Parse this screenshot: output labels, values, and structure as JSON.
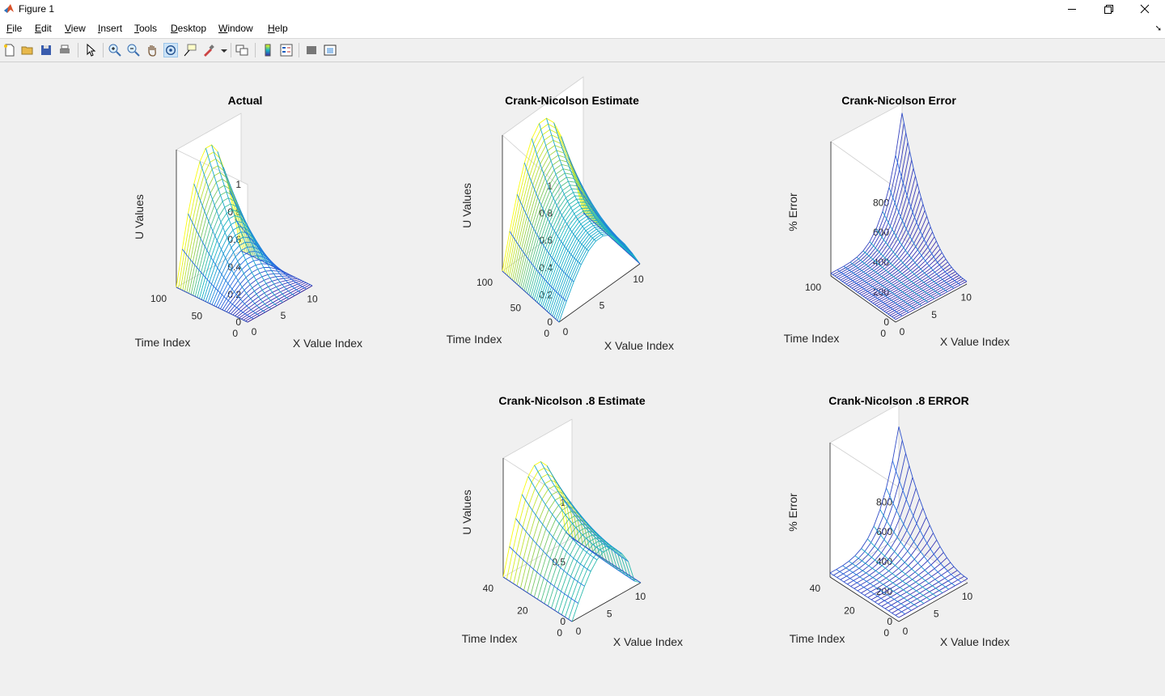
{
  "window": {
    "title": "Figure 1"
  },
  "menu": [
    {
      "label": "File",
      "accel": "F"
    },
    {
      "label": "Edit",
      "accel": "E"
    },
    {
      "label": "View",
      "accel": "V"
    },
    {
      "label": "Insert",
      "accel": "I"
    },
    {
      "label": "Tools",
      "accel": "T"
    },
    {
      "label": "Desktop",
      "accel": "D"
    },
    {
      "label": "Window",
      "accel": "W"
    },
    {
      "label": "Help",
      "accel": "H"
    }
  ],
  "toolbar": [
    "new-figure-icon",
    "open-file-icon",
    "save-icon",
    "print-icon",
    "edit-plot-icon",
    "zoom-in-icon",
    "zoom-out-icon",
    "pan-icon",
    "rotate-3d-icon",
    "data-cursor-icon",
    "brush-icon",
    "link-plot-icon",
    "colorbar-icon",
    "legend-icon",
    "hide-plot-tools-icon",
    "show-plot-tools-icon"
  ],
  "chart_data": [
    {
      "type": "surface",
      "title": "Actual",
      "xlabel": "X Value Index",
      "ylabel": "Time Index",
      "zlabel": "U Values",
      "xlim": [
        0,
        11
      ],
      "ylim": [
        0,
        100
      ],
      "zlim": [
        0,
        1
      ],
      "xticks": [
        "0",
        "5",
        "10"
      ],
      "yticks": [
        "0",
        "50",
        "100"
      ],
      "zticks": [
        "0",
        "0.2",
        "0.4",
        "0.6",
        "0.8",
        "1"
      ],
      "grid": true,
      "peak_value": 0.9,
      "colormap": "parula"
    },
    {
      "type": "surface",
      "title": "Crank-Nicolson Estimate",
      "xlabel": "X Value Index",
      "ylabel": "Time Index",
      "zlabel": "U Values",
      "xlim": [
        0,
        11
      ],
      "ylim": [
        0,
        100
      ],
      "zlim": [
        0,
        1
      ],
      "xticks": [
        "0",
        "5",
        "10"
      ],
      "yticks": [
        "0",
        "50",
        "100"
      ],
      "zticks": [
        "0",
        "0.2",
        "0.4",
        "0.6",
        "0.8",
        "1"
      ],
      "grid": true,
      "peak_value": 0.9,
      "colormap": "parula"
    },
    {
      "type": "surface",
      "title": "Crank-Nicolson Error",
      "xlabel": "X Value Index",
      "ylabel": "Time Index",
      "zlabel": "% Error",
      "xlim": [
        0,
        11
      ],
      "ylim": [
        0,
        100
      ],
      "zlim": [
        0,
        900
      ],
      "xticks": [
        "0",
        "5",
        "10"
      ],
      "yticks": [
        "0",
        "100"
      ],
      "zticks": [
        "0",
        "200",
        "400",
        "600",
        "800"
      ],
      "grid": true,
      "peak_value": 780,
      "colormap": "parula"
    },
    {
      "type": "surface",
      "title": "Crank-Nicolson .8 Estimate",
      "xlabel": "X Value Index",
      "ylabel": "Time Index",
      "zlabel": "U Values",
      "xlim": [
        0,
        11
      ],
      "ylim": [
        0,
        40
      ],
      "zlim": [
        0,
        1
      ],
      "xticks": [
        "0",
        "5",
        "10"
      ],
      "yticks": [
        "0",
        "20",
        "40"
      ],
      "zticks": [
        "0",
        "0.5",
        "1"
      ],
      "grid": true,
      "peak_value": 0.8,
      "colormap": "parula"
    },
    {
      "type": "surface",
      "title": "Crank-Nicolson .8 ERROR",
      "xlabel": "X Value Index",
      "ylabel": "Time Index",
      "zlabel": "% Error",
      "xlim": [
        0,
        11
      ],
      "ylim": [
        0,
        40
      ],
      "zlim": [
        0,
        900
      ],
      "xticks": [
        "0",
        "5",
        "10"
      ],
      "yticks": [
        "0",
        "20",
        "40"
      ],
      "zticks": [
        "0",
        "200",
        "400",
        "600",
        "800"
      ],
      "grid": true,
      "peak_value": 720,
      "colormap": "parula"
    }
  ]
}
